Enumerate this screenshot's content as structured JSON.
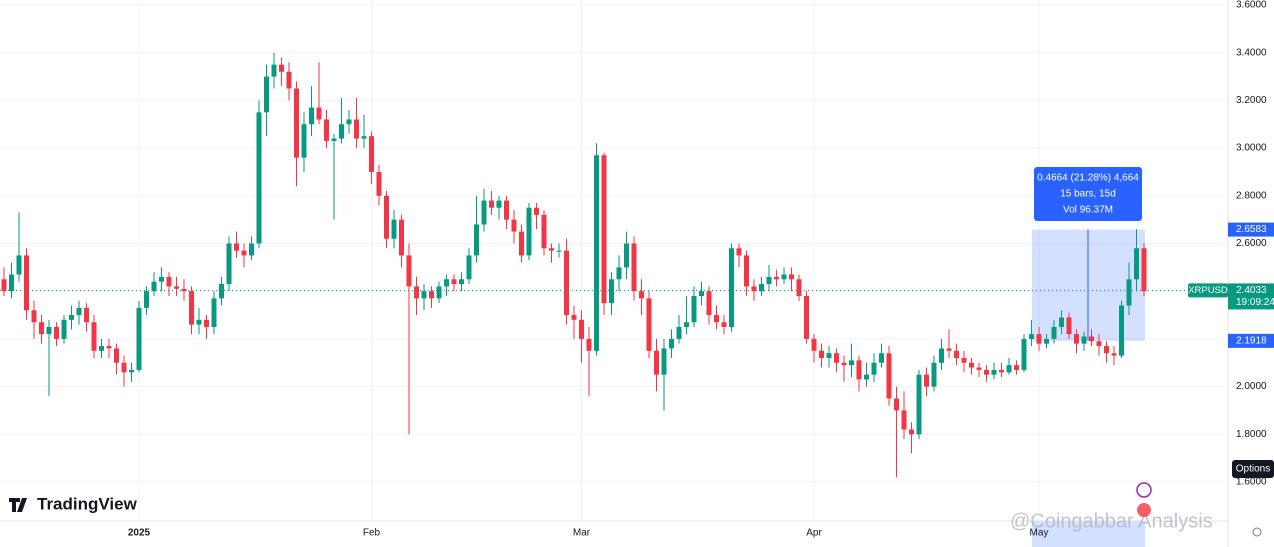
{
  "chart_data": {
    "type": "candlestick",
    "symbol": "XRPUSD",
    "brand": "TradingView",
    "watermark": "@Coingabbar Analysis",
    "options_button": "Options",
    "up_color": "#089981",
    "down_color": "#f23645",
    "grid": true,
    "ylim": [
      1.6,
      3.6
    ],
    "yticks": [
      {
        "value": 1.6,
        "label": "1.6000"
      },
      {
        "value": 1.8,
        "label": "1.8000"
      },
      {
        "value": 2.0,
        "label": "2.0000"
      },
      {
        "value": 2.2,
        "label": "2.2000"
      },
      {
        "value": 2.4,
        "label": "2.4000"
      },
      {
        "value": 2.6,
        "label": "2.6000"
      },
      {
        "value": 2.8,
        "label": "2.8000"
      },
      {
        "value": 3.0,
        "label": "3.0000"
      },
      {
        "value": 3.2,
        "label": "3.2000"
      },
      {
        "value": 3.4,
        "label": "3.4000"
      },
      {
        "value": 3.6,
        "label": "3.6000"
      }
    ],
    "last_price": 2.4033,
    "countdown": "19:09:24",
    "measure": {
      "high": 2.6583,
      "low": 2.1918,
      "change": "0.4664 (21.28%) 4,664",
      "bars": "15 bars, 15d",
      "volume": "Vol 96.37M"
    },
    "categories": [
      null,
      null,
      null,
      null,
      null,
      null,
      null,
      null,
      null,
      null,
      null,
      null,
      null,
      null,
      null,
      null,
      null,
      null,
      "2025",
      null,
      null,
      null,
      null,
      null,
      null,
      null,
      null,
      null,
      null,
      null,
      null,
      null,
      null,
      null,
      null,
      null,
      null,
      null,
      null,
      null,
      null,
      null,
      null,
      null,
      null,
      null,
      null,
      null,
      null,
      "Feb",
      null,
      null,
      null,
      null,
      null,
      null,
      null,
      null,
      null,
      null,
      null,
      null,
      null,
      null,
      null,
      null,
      null,
      null,
      null,
      null,
      null,
      null,
      null,
      null,
      null,
      null,
      null,
      "Mar",
      null,
      null,
      null,
      null,
      null,
      null,
      null,
      null,
      null,
      null,
      null,
      null,
      null,
      null,
      null,
      null,
      null,
      null,
      null,
      null,
      null,
      null,
      null,
      null,
      null,
      null,
      null,
      null,
      null,
      null,
      "Apr",
      null,
      null,
      null,
      null,
      null,
      null,
      null,
      null,
      null,
      null,
      null,
      null,
      null,
      null,
      null,
      null,
      null,
      null,
      null,
      null,
      null,
      null,
      null,
      null,
      null,
      null,
      null,
      null,
      null,
      "May",
      null,
      null,
      null,
      null,
      null,
      null,
      null,
      null,
      null,
      null,
      null,
      null,
      null,
      null
    ],
    "ohlc": [
      [
        2.45,
        2.5,
        2.38,
        2.4
      ],
      [
        2.4,
        2.52,
        2.37,
        2.47
      ],
      [
        2.47,
        2.73,
        2.44,
        2.55
      ],
      [
        2.55,
        2.58,
        2.28,
        2.32
      ],
      [
        2.32,
        2.36,
        2.2,
        2.27
      ],
      [
        2.27,
        2.3,
        2.18,
        2.22
      ],
      [
        2.22,
        2.28,
        1.96,
        2.25
      ],
      [
        2.25,
        2.27,
        2.17,
        2.2
      ],
      [
        2.2,
        2.3,
        2.18,
        2.28
      ],
      [
        2.28,
        2.34,
        2.24,
        2.3
      ],
      [
        2.3,
        2.36,
        2.26,
        2.33
      ],
      [
        2.33,
        2.35,
        2.23,
        2.27
      ],
      [
        2.27,
        2.3,
        2.12,
        2.15
      ],
      [
        2.15,
        2.2,
        2.12,
        2.17
      ],
      [
        2.17,
        2.2,
        2.12,
        2.16
      ],
      [
        2.16,
        2.18,
        2.05,
        2.1
      ],
      [
        2.1,
        2.13,
        2.0,
        2.06
      ],
      [
        2.06,
        2.1,
        2.02,
        2.07
      ],
      [
        2.07,
        2.36,
        2.06,
        2.33
      ],
      [
        2.33,
        2.42,
        2.3,
        2.4
      ],
      [
        2.4,
        2.48,
        2.38,
        2.44
      ],
      [
        2.44,
        2.5,
        2.4,
        2.46
      ],
      [
        2.46,
        2.48,
        2.38,
        2.42
      ],
      [
        2.42,
        2.46,
        2.38,
        2.41
      ],
      [
        2.41,
        2.45,
        2.36,
        2.4
      ],
      [
        2.4,
        2.42,
        2.22,
        2.26
      ],
      [
        2.26,
        2.33,
        2.22,
        2.28
      ],
      [
        2.28,
        2.3,
        2.2,
        2.25
      ],
      [
        2.25,
        2.4,
        2.22,
        2.37
      ],
      [
        2.37,
        2.46,
        2.34,
        2.43
      ],
      [
        2.43,
        2.63,
        2.4,
        2.6
      ],
      [
        2.6,
        2.65,
        2.54,
        2.57
      ],
      [
        2.57,
        2.6,
        2.5,
        2.55
      ],
      [
        2.55,
        2.63,
        2.53,
        2.6
      ],
      [
        2.6,
        3.2,
        2.58,
        3.15
      ],
      [
        3.15,
        3.35,
        3.05,
        3.3
      ],
      [
        3.3,
        3.4,
        3.25,
        3.35
      ],
      [
        3.35,
        3.38,
        3.26,
        3.32
      ],
      [
        3.32,
        3.36,
        3.2,
        3.25
      ],
      [
        3.25,
        3.28,
        2.84,
        2.96
      ],
      [
        2.96,
        3.15,
        2.9,
        3.1
      ],
      [
        3.1,
        3.26,
        3.05,
        3.17
      ],
      [
        3.17,
        3.36,
        3.1,
        3.12
      ],
      [
        3.12,
        3.16,
        3.0,
        3.03
      ],
      [
        3.03,
        3.06,
        2.7,
        3.04
      ],
      [
        3.04,
        3.21,
        3.02,
        3.1
      ],
      [
        3.1,
        3.16,
        3.06,
        3.12
      ],
      [
        3.12,
        3.21,
        3.0,
        3.04
      ],
      [
        3.04,
        3.14,
        3.0,
        3.05
      ],
      [
        3.05,
        3.07,
        2.85,
        2.9
      ],
      [
        2.9,
        2.93,
        2.76,
        2.8
      ],
      [
        2.8,
        2.82,
        2.58,
        2.62
      ],
      [
        2.62,
        2.74,
        2.58,
        2.7
      ],
      [
        2.7,
        2.72,
        2.5,
        2.55
      ],
      [
        2.55,
        2.6,
        1.8,
        2.42
      ],
      [
        2.42,
        2.46,
        2.3,
        2.37
      ],
      [
        2.37,
        2.43,
        2.32,
        2.4
      ],
      [
        2.4,
        2.42,
        2.33,
        2.37
      ],
      [
        2.37,
        2.44,
        2.35,
        2.42
      ],
      [
        2.42,
        2.47,
        2.38,
        2.45
      ],
      [
        2.45,
        2.47,
        2.4,
        2.43
      ],
      [
        2.43,
        2.48,
        2.4,
        2.45
      ],
      [
        2.45,
        2.58,
        2.43,
        2.55
      ],
      [
        2.55,
        2.8,
        2.52,
        2.68
      ],
      [
        2.68,
        2.83,
        2.65,
        2.78
      ],
      [
        2.78,
        2.82,
        2.72,
        2.75
      ],
      [
        2.75,
        2.8,
        2.7,
        2.78
      ],
      [
        2.78,
        2.8,
        2.66,
        2.7
      ],
      [
        2.7,
        2.74,
        2.6,
        2.65
      ],
      [
        2.65,
        2.68,
        2.52,
        2.55
      ],
      [
        2.55,
        2.77,
        2.53,
        2.75
      ],
      [
        2.75,
        2.77,
        2.66,
        2.72
      ],
      [
        2.72,
        2.74,
        2.55,
        2.58
      ],
      [
        2.58,
        2.6,
        2.52,
        2.57
      ],
      [
        2.57,
        2.6,
        2.54,
        2.57
      ],
      [
        2.57,
        2.62,
        2.26,
        2.3
      ],
      [
        2.3,
        2.34,
        2.2,
        2.28
      ],
      [
        2.28,
        2.32,
        2.1,
        2.2
      ],
      [
        2.2,
        2.25,
        1.96,
        2.15
      ],
      [
        2.15,
        3.02,
        2.13,
        2.97
      ],
      [
        2.97,
        2.98,
        2.3,
        2.35
      ],
      [
        2.35,
        2.48,
        2.3,
        2.45
      ],
      [
        2.45,
        2.55,
        2.4,
        2.5
      ],
      [
        2.5,
        2.65,
        2.45,
        2.6
      ],
      [
        2.6,
        2.63,
        2.36,
        2.4
      ],
      [
        2.4,
        2.45,
        2.3,
        2.37
      ],
      [
        2.37,
        2.4,
        2.12,
        2.15
      ],
      [
        2.15,
        2.2,
        1.98,
        2.05
      ],
      [
        2.05,
        2.2,
        1.9,
        2.16
      ],
      [
        2.16,
        2.24,
        2.12,
        2.2
      ],
      [
        2.2,
        2.3,
        2.18,
        2.25
      ],
      [
        2.25,
        2.38,
        2.22,
        2.27
      ],
      [
        2.27,
        2.42,
        2.25,
        2.38
      ],
      [
        2.38,
        2.44,
        2.34,
        2.4
      ],
      [
        2.4,
        2.42,
        2.26,
        2.3
      ],
      [
        2.3,
        2.34,
        2.24,
        2.27
      ],
      [
        2.27,
        2.3,
        2.22,
        2.25
      ],
      [
        2.25,
        2.6,
        2.23,
        2.58
      ],
      [
        2.58,
        2.6,
        2.5,
        2.55
      ],
      [
        2.55,
        2.57,
        2.38,
        2.42
      ],
      [
        2.42,
        2.45,
        2.36,
        2.4
      ],
      [
        2.4,
        2.46,
        2.38,
        2.43
      ],
      [
        2.43,
        2.51,
        2.4,
        2.46
      ],
      [
        2.46,
        2.49,
        2.42,
        2.45
      ],
      [
        2.45,
        2.5,
        2.43,
        2.47
      ],
      [
        2.47,
        2.5,
        2.4,
        2.45
      ],
      [
        2.45,
        2.47,
        2.36,
        2.38
      ],
      [
        2.38,
        2.4,
        2.18,
        2.2
      ],
      [
        2.2,
        2.22,
        2.1,
        2.15
      ],
      [
        2.15,
        2.18,
        2.08,
        2.12
      ],
      [
        2.12,
        2.17,
        2.08,
        2.14
      ],
      [
        2.14,
        2.16,
        2.06,
        2.1
      ],
      [
        2.1,
        2.13,
        2.02,
        2.09
      ],
      [
        2.09,
        2.18,
        2.04,
        2.11
      ],
      [
        2.11,
        2.13,
        1.98,
        2.03
      ],
      [
        2.03,
        2.1,
        2.0,
        2.05
      ],
      [
        2.05,
        2.14,
        2.02,
        2.1
      ],
      [
        2.1,
        2.18,
        2.08,
        2.14
      ],
      [
        2.14,
        2.17,
        1.92,
        1.95
      ],
      [
        1.95,
        2.0,
        1.62,
        1.9
      ],
      [
        1.9,
        1.98,
        1.78,
        1.82
      ],
      [
        1.82,
        1.85,
        1.72,
        1.8
      ],
      [
        1.8,
        2.07,
        1.78,
        2.05
      ],
      [
        2.05,
        2.08,
        1.96,
        2.0
      ],
      [
        2.0,
        2.13,
        1.98,
        2.1
      ],
      [
        2.1,
        2.2,
        2.07,
        2.16
      ],
      [
        2.16,
        2.24,
        2.12,
        2.15
      ],
      [
        2.15,
        2.18,
        2.09,
        2.12
      ],
      [
        2.12,
        2.15,
        2.06,
        2.1
      ],
      [
        2.1,
        2.12,
        2.05,
        2.08
      ],
      [
        2.08,
        2.1,
        2.04,
        2.07
      ],
      [
        2.07,
        2.09,
        2.02,
        2.05
      ],
      [
        2.05,
        2.1,
        2.03,
        2.07
      ],
      [
        2.07,
        2.1,
        2.04,
        2.06
      ],
      [
        2.06,
        2.12,
        2.05,
        2.09
      ],
      [
        2.09,
        2.11,
        2.05,
        2.07
      ],
      [
        2.07,
        2.22,
        2.06,
        2.2
      ],
      [
        2.2,
        2.28,
        2.17,
        2.22
      ],
      [
        2.22,
        2.25,
        2.15,
        2.18
      ],
      [
        2.18,
        2.22,
        2.16,
        2.2
      ],
      [
        2.2,
        2.28,
        2.18,
        2.25
      ],
      [
        2.25,
        2.32,
        2.22,
        2.29
      ],
      [
        2.29,
        2.31,
        2.2,
        2.22
      ],
      [
        2.22,
        2.24,
        2.14,
        2.18
      ],
      [
        2.18,
        2.23,
        2.15,
        2.21
      ],
      [
        2.21,
        2.24,
        2.17,
        2.19
      ],
      [
        2.19,
        2.22,
        2.13,
        2.17
      ],
      [
        2.17,
        2.19,
        2.1,
        2.14
      ],
      [
        2.14,
        2.17,
        2.09,
        2.13
      ],
      [
        2.13,
        2.36,
        2.12,
        2.34
      ],
      [
        2.34,
        2.52,
        2.3,
        2.45
      ],
      [
        2.45,
        2.66,
        2.4,
        2.58
      ],
      [
        2.58,
        2.6,
        2.38,
        2.4
      ]
    ]
  }
}
